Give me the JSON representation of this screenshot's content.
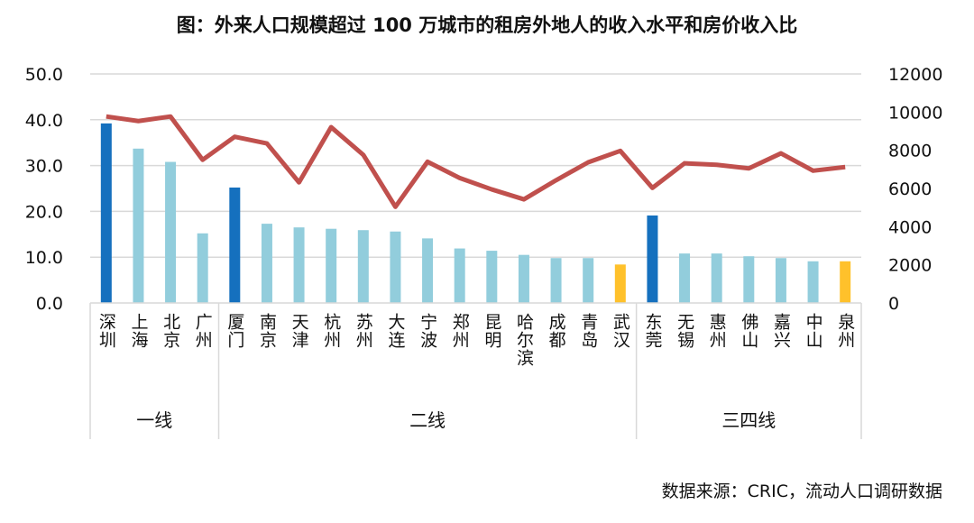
{
  "chart_data": {
    "type": "bar+line",
    "title": "图：外来人口规模超过 100 万城市的租房外地人的收入水平和房价收入比",
    "source": "数据来源：CRIC，流动人口调研数据",
    "categories": [
      "深圳",
      "上海",
      "北京",
      "广州",
      "厦门",
      "南京",
      "天津",
      "杭州",
      "苏州",
      "大连",
      "宁波",
      "郑州",
      "昆明",
      "哈尔滨",
      "成都",
      "青岛",
      "武汉",
      "东莞",
      "无锡",
      "惠州",
      "佛山",
      "嘉兴",
      "中山",
      "泉州"
    ],
    "tiers": [
      {
        "label": "一线",
        "count": 4
      },
      {
        "label": "二线",
        "count": 13
      },
      {
        "label": "三四线",
        "count": 7
      }
    ],
    "left_axis": {
      "ylim": [
        0,
        50
      ],
      "ticks": [
        "0.0",
        "10.0",
        "20.0",
        "30.0",
        "40.0",
        "50.0"
      ]
    },
    "right_axis": {
      "ylim": [
        0,
        12000
      ],
      "ticks": [
        "0",
        "2000",
        "4000",
        "6000",
        "8000",
        "10000",
        "12000"
      ]
    },
    "grid": true,
    "series": [
      {
        "type": "bar",
        "axis": "left",
        "values": [
          39.2,
          33.7,
          30.8,
          15.2,
          25.2,
          17.3,
          16.5,
          16.2,
          15.9,
          15.6,
          14.1,
          11.9,
          11.4,
          10.5,
          9.8,
          9.8,
          8.4,
          19.1,
          10.8,
          10.8,
          10.2,
          9.8,
          9.1,
          9.1
        ],
        "colors": [
          "#1570be",
          "#92cddc",
          "#92cddc",
          "#92cddc",
          "#1570be",
          "#92cddc",
          "#92cddc",
          "#92cddc",
          "#92cddc",
          "#92cddc",
          "#92cddc",
          "#92cddc",
          "#92cddc",
          "#92cddc",
          "#92cddc",
          "#92cddc",
          "#ffc12b",
          "#1570be",
          "#92cddc",
          "#92cddc",
          "#92cddc",
          "#92cddc",
          "#92cddc",
          "#ffc12b"
        ]
      },
      {
        "type": "line",
        "axis": "right",
        "color": "#c0504d",
        "values": [
          9770,
          9530,
          9770,
          7500,
          8710,
          8360,
          6320,
          9210,
          7760,
          5040,
          7400,
          6550,
          5950,
          5430,
          6430,
          7370,
          7970,
          6030,
          7320,
          7240,
          7050,
          7840,
          6930,
          7120
        ]
      }
    ]
  }
}
